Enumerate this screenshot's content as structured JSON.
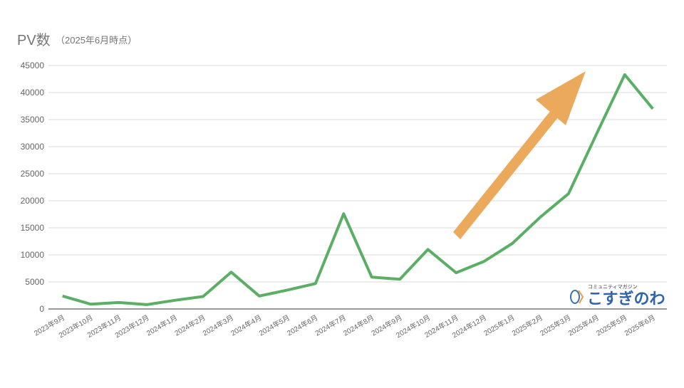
{
  "chart_data": {
    "type": "line",
    "title": "PV数",
    "subtitle": "（2025年6月時点）",
    "categories": [
      "2023年9月",
      "2023年10月",
      "2023年11月",
      "2023年12月",
      "2024年1月",
      "2024年2月",
      "2024年3月",
      "2024年4月",
      "2024年5月",
      "2024年6月",
      "2024年7月",
      "2024年8月",
      "2024年9月",
      "2024年10月",
      "2024年11月",
      "2024年12月",
      "2025年1月",
      "2025年2月",
      "2025年3月",
      "2025年4月",
      "2025年5月",
      "2025年6月"
    ],
    "values": [
      2400,
      900,
      1200,
      800,
      1600,
      2300,
      6800,
      2400,
      3500,
      4700,
      17600,
      5900,
      5500,
      11000,
      6700,
      8800,
      12100,
      17000,
      21300,
      32400,
      43300,
      37000
    ],
    "color": "#5aaf64",
    "ylim": [
      0,
      45000
    ],
    "yticks": [
      0,
      5000,
      10000,
      15000,
      20000,
      25000,
      30000,
      35000,
      40000,
      45000
    ],
    "grid": true,
    "annotations": [
      "コミュニティマガジン",
      "こすぎのわ"
    ]
  }
}
